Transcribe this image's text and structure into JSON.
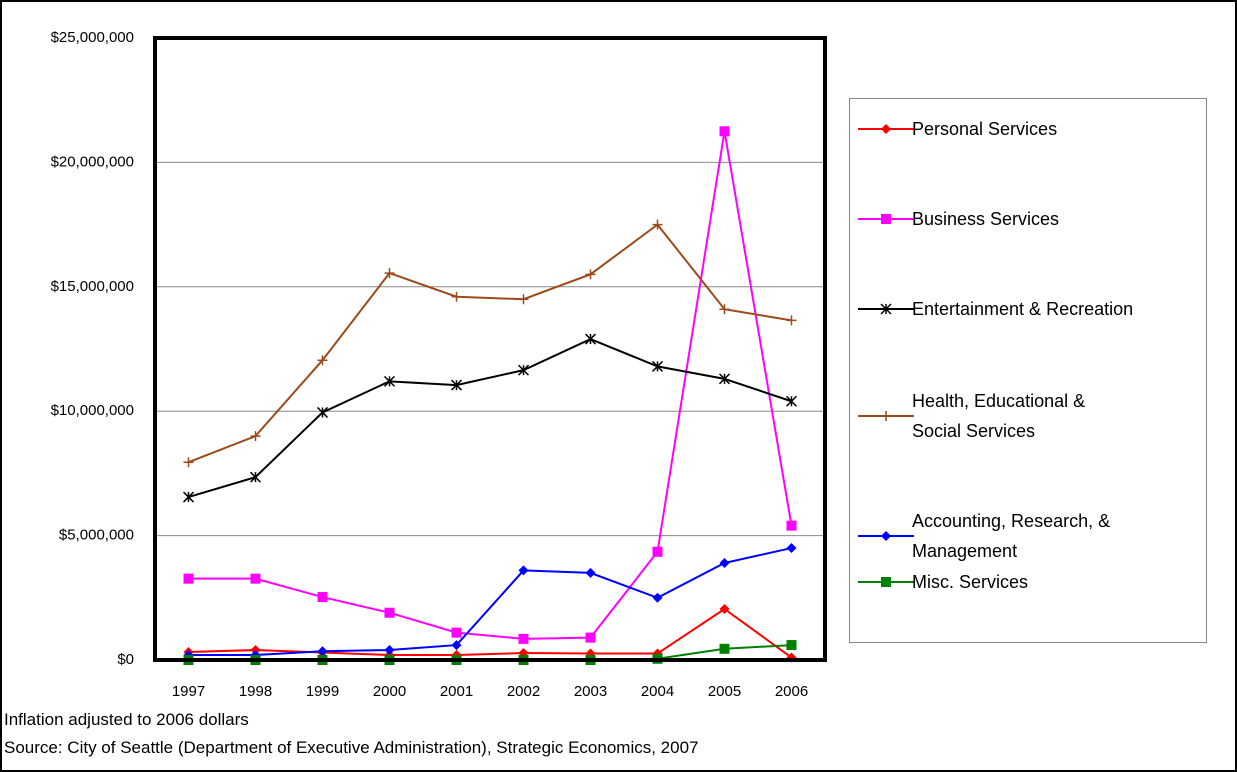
{
  "chart_data": {
    "type": "line",
    "note": "Inflation adjusted to 2006 dollars",
    "source": "Source: City of Seattle (Department of Executive Administration), Strategic Economics, 2007",
    "categories": [
      "1997",
      "1998",
      "1999",
      "2000",
      "2001",
      "2002",
      "2003",
      "2004",
      "2005",
      "2006"
    ],
    "ylim": [
      0,
      25000000
    ],
    "yticks": [
      {
        "value": 0,
        "label": "$0"
      },
      {
        "value": 5000000,
        "label": "$5,000,000"
      },
      {
        "value": 10000000,
        "label": "$10,000,000"
      },
      {
        "value": 15000000,
        "label": "$15,000,000"
      },
      {
        "value": 20000000,
        "label": "$20,000,000"
      },
      {
        "value": 25000000,
        "label": "$25,000,000"
      }
    ],
    "grid": true,
    "legend": "right",
    "series": [
      {
        "name": "Personal Services",
        "color": "#ff0000",
        "marker": "diamond",
        "values": [
          320000,
          400000,
          300000,
          200000,
          200000,
          280000,
          260000,
          260000,
          2050000,
          100000
        ]
      },
      {
        "name": "Business Services",
        "color": "#ff00ff",
        "marker": "square",
        "values": [
          3270000,
          3270000,
          2530000,
          1900000,
          1100000,
          850000,
          900000,
          4350000,
          21250000,
          5400000
        ]
      },
      {
        "name": "Entertainment & Recreation",
        "color": "#000000",
        "marker": "asterisk",
        "values": [
          6550000,
          7350000,
          9950000,
          11200000,
          11050000,
          11650000,
          12900000,
          11800000,
          11300000,
          10400000
        ]
      },
      {
        "name": "Health, Educational & Social Services",
        "color": "#9c4a1a",
        "marker": "plus",
        "values": [
          7950000,
          9000000,
          12050000,
          15550000,
          14600000,
          14500000,
          15500000,
          17500000,
          14100000,
          13650000
        ]
      },
      {
        "name": "Accounting, Research, & Management",
        "color": "#0000ff",
        "marker": "diamond",
        "values": [
          200000,
          200000,
          350000,
          400000,
          600000,
          3600000,
          3500000,
          2500000,
          3900000,
          4500000
        ]
      },
      {
        "name": "Misc. Services",
        "color": "#008000",
        "marker": "square",
        "values": [
          0,
          0,
          0,
          0,
          0,
          0,
          0,
          50000,
          450000,
          600000
        ]
      }
    ]
  }
}
